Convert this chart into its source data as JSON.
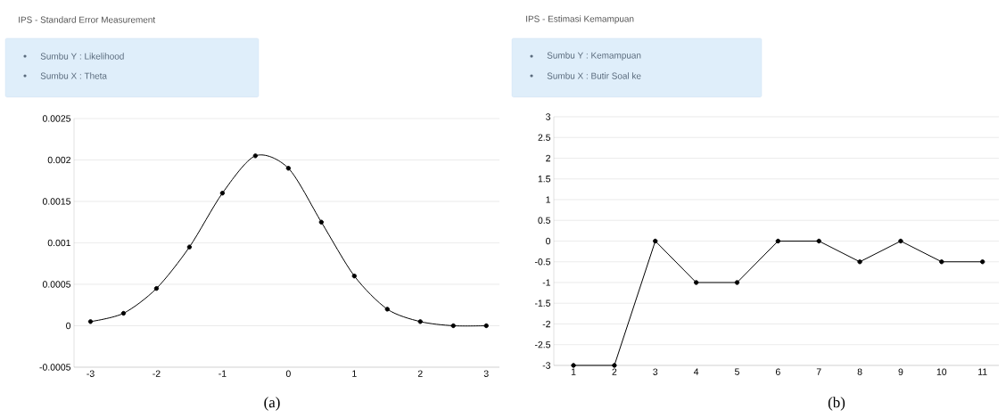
{
  "chart_data": [
    {
      "type": "line",
      "title": "IPS - Standard Error Measurement",
      "annotations": [
        "Sumbu Y : Likelihood",
        "Sumbu X : Theta",
        "(a)"
      ],
      "x": [
        -3,
        -2.5,
        -2,
        -1.5,
        -1,
        -0.5,
        0,
        0.5,
        1,
        1.5,
        2,
        2.5,
        3
      ],
      "values": [
        5e-05,
        0.00015,
        0.00045,
        0.00095,
        0.0016,
        0.00205,
        0.0019,
        0.00125,
        0.0006,
        0.0002,
        5e-05,
        0,
        0
      ],
      "color": "#000000",
      "marker": "circle",
      "line_style": "solid",
      "grid": "y",
      "xlim": [
        -3.25,
        3.2
      ],
      "xticks": [
        -3,
        -2,
        -1,
        0,
        1,
        2,
        3
      ],
      "ylim": [
        -0.0005,
        0.0025
      ],
      "yticks": [
        -0.0005,
        0,
        0.0005,
        0.001,
        0.0015,
        0.002,
        0.0025
      ]
    },
    {
      "type": "line",
      "title": "IPS - Estimasi Kemampuan",
      "annotations": [
        "Sumbu Y : Kemampuan",
        "Sumbu X : Butir Soal ke",
        "(b)"
      ],
      "categories": [
        "1",
        "2",
        "3",
        "4",
        "5",
        "6",
        "7",
        "8",
        "9",
        "10",
        "11"
      ],
      "values": [
        -3,
        -3,
        0,
        -1,
        -1,
        0,
        0,
        -0.5,
        0,
        -0.5,
        -0.5
      ],
      "color": "#000000",
      "marker": "circle",
      "line_style": "solid",
      "grid": "y",
      "ylim": [
        -3,
        3
      ],
      "yticks": [
        -3,
        -2.5,
        -2,
        -1.5,
        -1,
        -0.5,
        0,
        0.5,
        1,
        1.5,
        2,
        2.5,
        3
      ]
    }
  ]
}
